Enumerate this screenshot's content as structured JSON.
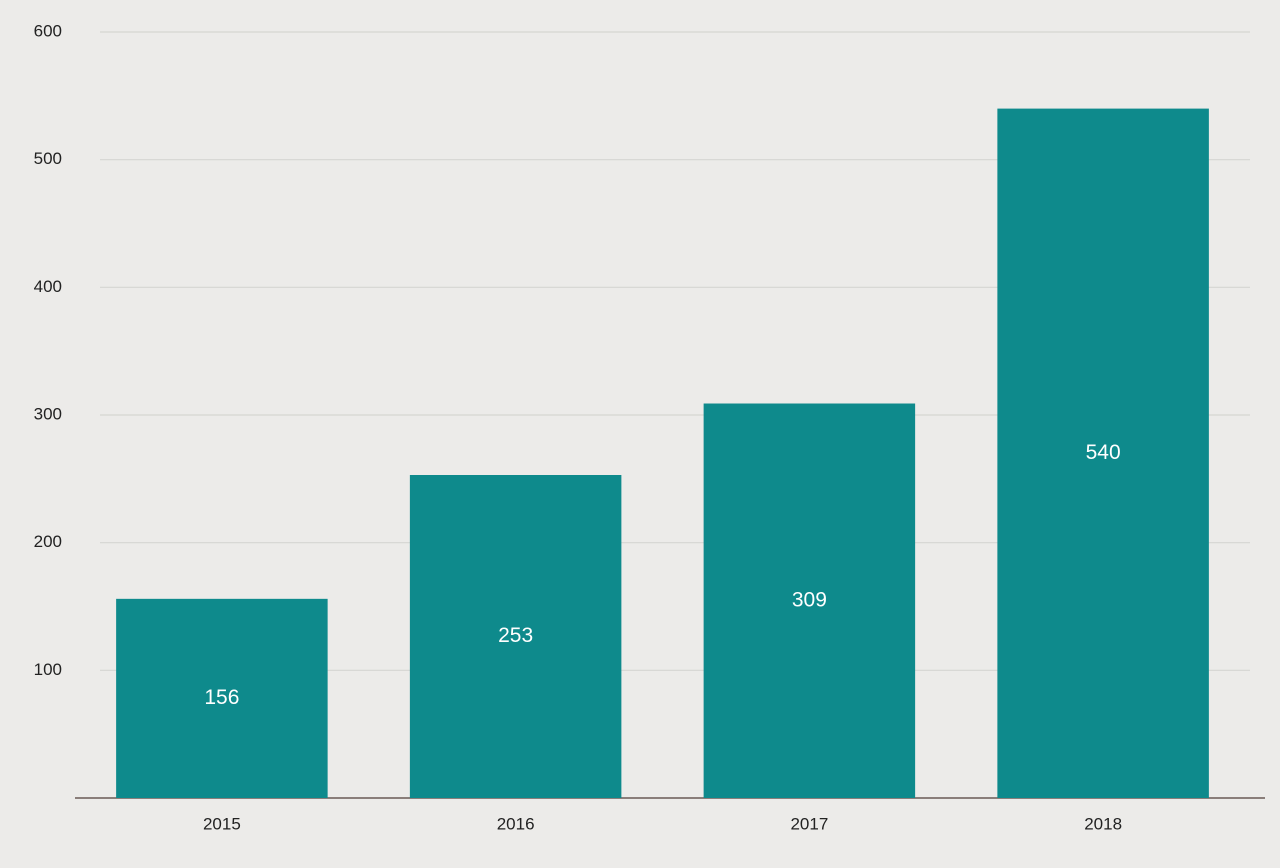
{
  "chart_data": {
    "type": "bar",
    "categories": [
      "2015",
      "2016",
      "2017",
      "2018"
    ],
    "values": [
      156,
      253,
      309,
      540
    ],
    "color": "#0e8a8c",
    "ylim": [
      0,
      600
    ],
    "yticks": [
      100,
      200,
      300,
      400,
      500,
      600
    ],
    "grid": true
  }
}
